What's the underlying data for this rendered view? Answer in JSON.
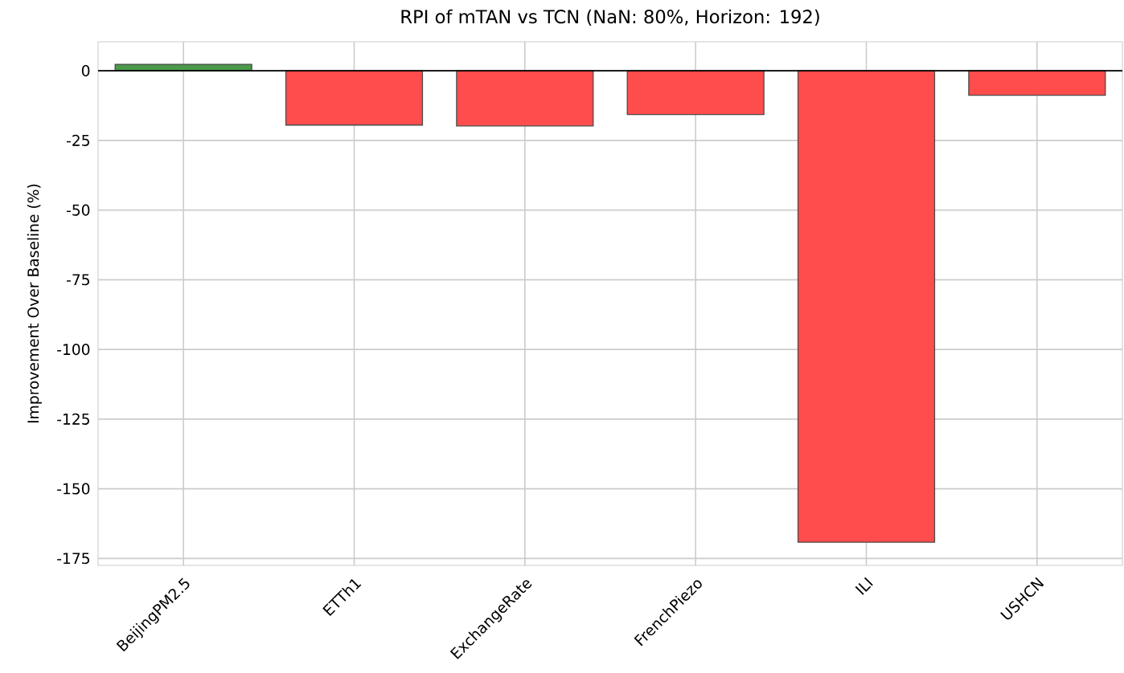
{
  "chart_data": {
    "type": "bar",
    "title": "RPI of mTAN vs TCN (NaN: 80%, Horizon: 192)",
    "ylabel": "Improvement Over Baseline (%)",
    "categories": [
      "BeijingPM2.5",
      "ETTh1",
      "ExchangeRate",
      "FrenchPiezo",
      "ILI",
      "USHCN"
    ],
    "values": [
      2.3,
      -19.5,
      -19.8,
      -15.7,
      -169.2,
      -8.8
    ],
    "colors": [
      "#4a9a4a",
      "#ff4c4c",
      "#ff4c4c",
      "#ff4c4c",
      "#ff4c4c",
      "#ff4c4c"
    ],
    "ylim": [
      -177.5,
      10.4
    ],
    "yticks": [
      0,
      -25,
      -50,
      -75,
      -100,
      -125,
      -150,
      -175
    ],
    "grid": true,
    "ref_lines": [
      {
        "axis": "y",
        "value": 0,
        "color": "#000000"
      }
    ]
  }
}
